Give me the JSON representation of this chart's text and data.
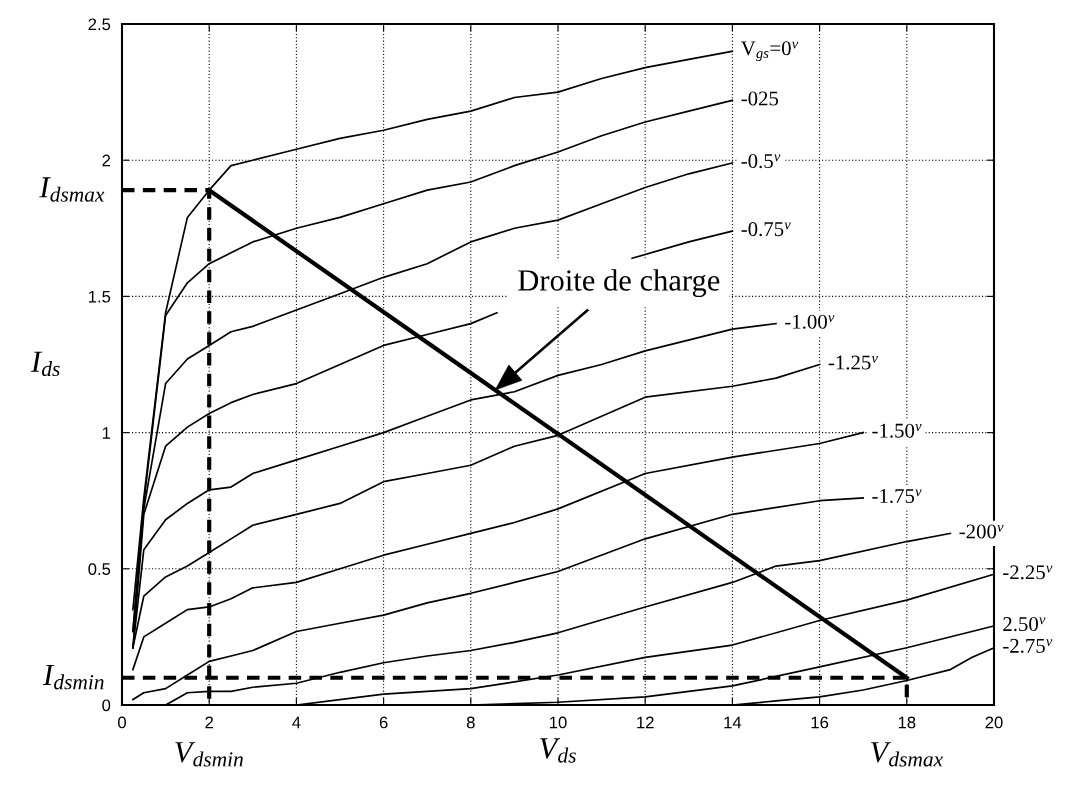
{
  "chart_data": {
    "type": "line",
    "xlabel": "V$_{ds}$",
    "ylabel": "I$_{ds}$",
    "xlim": [
      0,
      20
    ],
    "xticks": [
      0,
      2,
      4,
      6,
      8,
      10,
      12,
      14,
      16,
      18,
      20
    ],
    "ylim": [
      0,
      2.5
    ],
    "yticks": [
      0,
      0.5,
      1,
      1.5,
      2,
      2.5
    ],
    "grid": true,
    "legend": "right",
    "series": [
      {
        "name": "V$_{gs}$=0$^{v}$",
        "color": "#000000",
        "x": [
          0.25,
          0.5,
          1,
          1.5,
          2,
          2.5,
          3,
          4,
          5,
          6,
          7,
          8,
          9,
          10,
          11,
          12,
          13,
          14
        ],
        "values": [
          0.35,
          0.76,
          1.44,
          1.79,
          1.89,
          1.98,
          2.0,
          2.04,
          2.08,
          2.11,
          2.15,
          2.18,
          2.23,
          2.25,
          2.3,
          2.34,
          2.37,
          2.4
        ]
      },
      {
        "name": "-025",
        "color": "#000000",
        "x": [
          0.25,
          0.5,
          1,
          1.5,
          2,
          2.5,
          3,
          4,
          5,
          6,
          7,
          8,
          9,
          10,
          11,
          12,
          13,
          14
        ],
        "values": [
          0.27,
          0.74,
          1.43,
          1.55,
          1.62,
          1.66,
          1.7,
          1.75,
          1.79,
          1.84,
          1.89,
          1.92,
          1.98,
          2.03,
          2.09,
          2.14,
          2.18,
          2.22
        ]
      },
      {
        "name": "-0.5$^{v}$",
        "color": "#000000",
        "x": [
          0.25,
          0.5,
          1,
          1.5,
          2,
          2.5,
          3,
          4,
          5,
          6,
          7,
          8,
          9,
          10,
          11,
          12,
          13,
          14
        ],
        "values": [
          0.27,
          0.72,
          1.18,
          1.27,
          1.32,
          1.37,
          1.39,
          1.45,
          1.51,
          1.57,
          1.62,
          1.7,
          1.75,
          1.78,
          1.84,
          1.9,
          1.95,
          1.99
        ]
      },
      {
        "name": "-0.75$^{v}$",
        "color": "#000000",
        "x": [
          0.25,
          0.5,
          1,
          1.5,
          2,
          2.5,
          3,
          4,
          5,
          6,
          7,
          8,
          8.6,
          10,
          11.7,
          13,
          14
        ],
        "values": [
          0.21,
          0.7,
          0.95,
          1.02,
          1.07,
          1.11,
          1.14,
          1.18,
          1.25,
          1.32,
          1.36,
          1.4,
          1.44,
          null,
          1.64,
          1.7,
          1.74
        ]
      },
      {
        "name": "-1.00$^{v}$",
        "color": "#000000",
        "x": [
          0.25,
          0.5,
          1,
          1.5,
          2,
          2.5,
          3,
          4,
          5,
          6,
          7,
          8,
          9,
          10,
          11,
          12,
          14,
          15
        ],
        "values": [
          0.21,
          0.57,
          0.68,
          0.74,
          0.79,
          0.8,
          0.85,
          0.9,
          0.95,
          1.0,
          1.06,
          1.12,
          1.15,
          1.21,
          1.25,
          1.3,
          1.38,
          1.4
        ]
      },
      {
        "name": "-1.25$^{v}$",
        "color": "#000000",
        "x": [
          0.25,
          0.5,
          1,
          1.5,
          2,
          2.5,
          3,
          4,
          5,
          6,
          7,
          8,
          9,
          10,
          11,
          12,
          14,
          15,
          16
        ],
        "values": [
          0.21,
          0.4,
          0.47,
          0.51,
          0.56,
          0.61,
          0.66,
          0.7,
          0.74,
          0.82,
          0.85,
          0.88,
          0.95,
          0.99,
          1.06,
          1.13,
          1.17,
          1.2,
          1.25
        ]
      },
      {
        "name": "-1.50$^{v}$",
        "color": "#000000",
        "x": [
          0.25,
          0.5,
          1,
          1.5,
          2,
          2.5,
          3,
          4,
          5,
          6,
          7,
          8,
          9,
          10,
          12,
          14,
          16,
          17
        ],
        "values": [
          0.13,
          0.25,
          0.3,
          0.35,
          0.36,
          0.39,
          0.43,
          0.45,
          0.5,
          0.55,
          0.59,
          0.63,
          0.67,
          0.72,
          0.85,
          0.91,
          0.96,
          1.0
        ]
      },
      {
        "name": "-1.75$^{v}$",
        "color": "#000000",
        "x": [
          0.25,
          0.5,
          1,
          1.5,
          2,
          2.5,
          3,
          4,
          5,
          6,
          7,
          8,
          9,
          10,
          12,
          14,
          16,
          17
        ],
        "values": [
          0.02,
          0.045,
          0.06,
          0.11,
          0.16,
          0.18,
          0.2,
          0.27,
          0.3,
          0.33,
          0.375,
          0.41,
          0.45,
          0.49,
          0.61,
          0.7,
          0.75,
          0.76
        ]
      },
      {
        "name": "-200$^{v}$",
        "color": "#000000",
        "x": [
          1,
          1.5,
          2,
          2.5,
          3,
          4,
          5,
          6,
          7,
          8,
          9,
          10,
          12,
          14,
          15,
          16,
          18,
          19
        ],
        "values": [
          0,
          0.045,
          0.05,
          0.05,
          0.065,
          0.08,
          0.12,
          0.155,
          0.18,
          0.2,
          0.23,
          0.265,
          0.36,
          0.45,
          0.51,
          0.53,
          0.6,
          0.63
        ]
      },
      {
        "name": "-2.25$^{v}$",
        "color": "#000000",
        "x": [
          4,
          6,
          8,
          10,
          12,
          14,
          16,
          18,
          20
        ],
        "values": [
          0,
          0.04,
          0.06,
          0.11,
          0.175,
          0.22,
          0.31,
          0.385,
          0.48
        ]
      },
      {
        "name": "2.50$^{v}$",
        "color": "#000000",
        "x": [
          8,
          10,
          12,
          14,
          16,
          18,
          20
        ],
        "values": [
          0,
          0.01,
          0.03,
          0.07,
          0.14,
          0.21,
          0.29
        ]
      },
      {
        "name": "-2.75$^{v}$",
        "color": "#000000",
        "x": [
          14,
          15,
          16,
          17,
          18,
          19,
          19.5,
          20
        ],
        "values": [
          0,
          0.015,
          0.03,
          0.055,
          0.09,
          0.13,
          0.175,
          0.21
        ]
      },
      {
        "color": "#000000",
        "x": [
          2,
          18
        ],
        "values": [
          1.89,
          0.1
        ]
      },
      {
        "color": "#000000",
        "line_style": "dashed",
        "x": [
          0,
          2,
          2
        ],
        "values": [
          1.89,
          1.89,
          0
        ]
      },
      {
        "color": "#000000",
        "line_style": "dashed",
        "x": [
          0,
          18,
          18
        ],
        "values": [
          0.1,
          0.1,
          0
        ]
      }
    ],
    "annotations": [
      {
        "text": "I$_{dsmax}$",
        "x": 0,
        "y": 1.89
      },
      {
        "text": "I$_{dsmin}$",
        "x": 0,
        "y": 0.1
      },
      {
        "text": "V$_{dsmin}$",
        "x": 2,
        "y": 0
      },
      {
        "text": "V$_{dsmax}$",
        "x": 18,
        "y": 0
      },
      "Droite de charge"
    ]
  }
}
